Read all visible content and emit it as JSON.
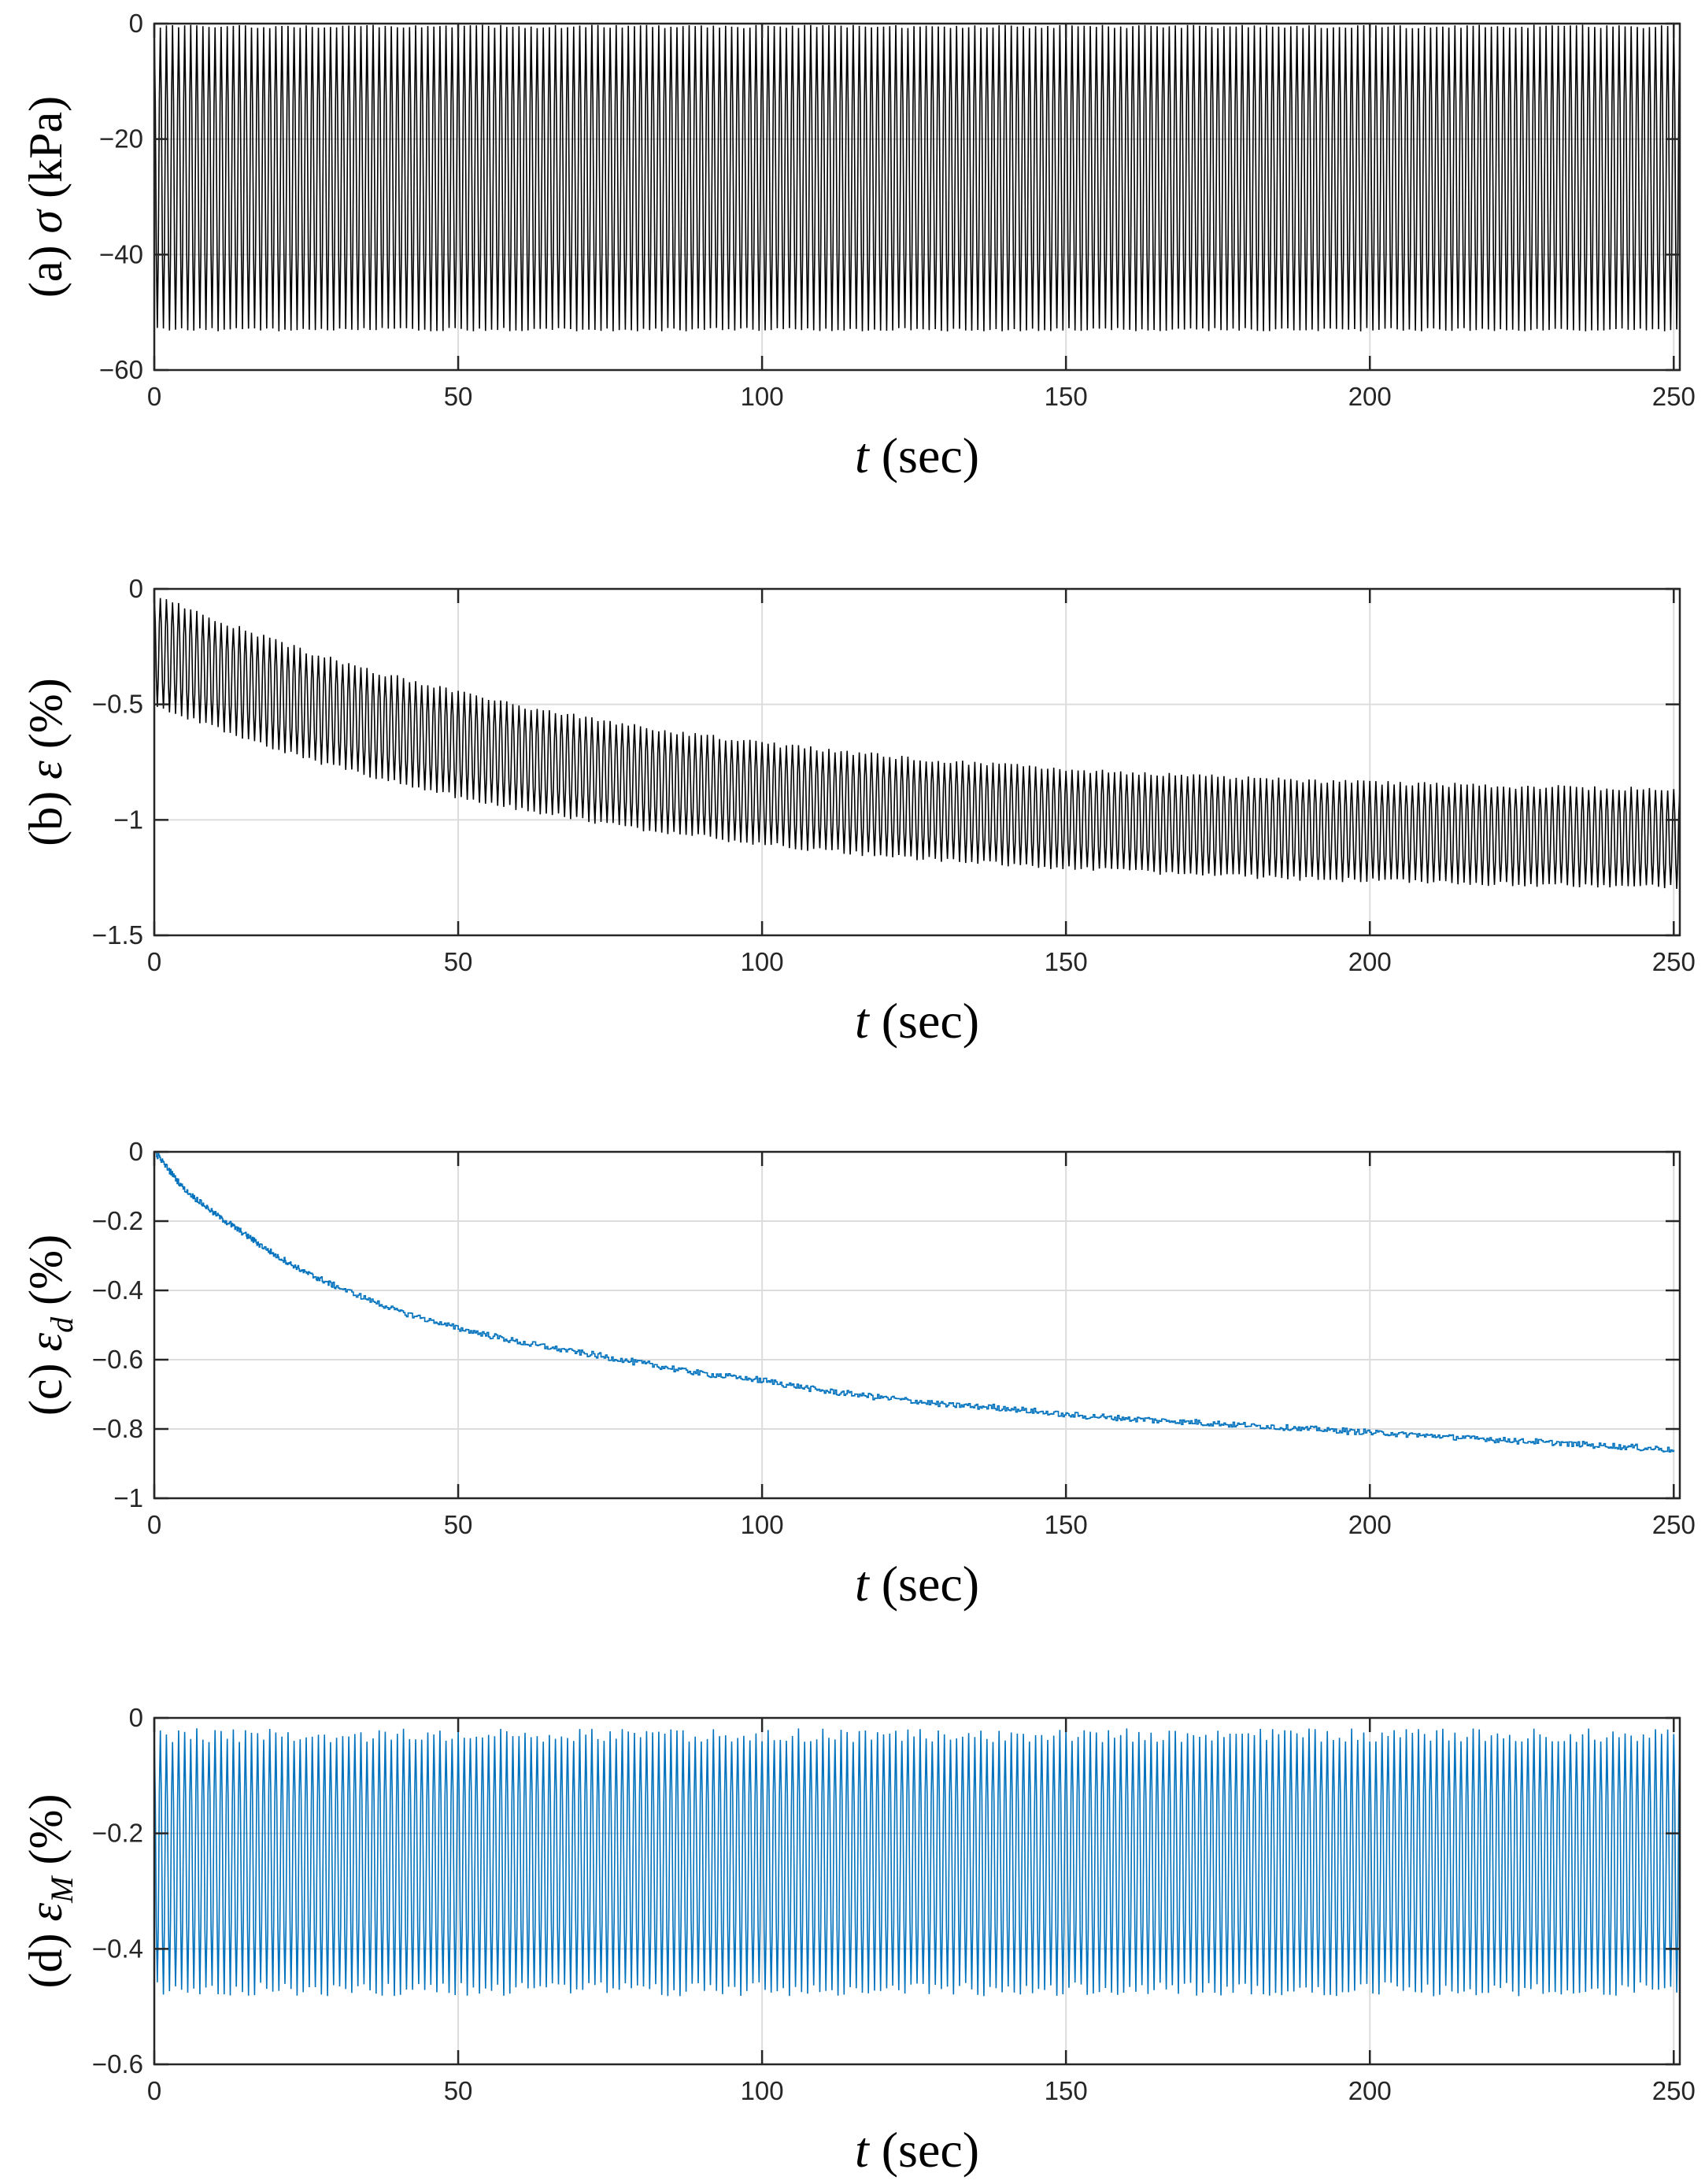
{
  "chart_data": [
    {
      "type": "line",
      "panel": "(a)",
      "ylabel_prefix": "(a) ",
      "ylabel_symbol": "σ",
      "ylabel_sub": "",
      "ylabel_suffix": " (kPa)",
      "xlabel_var": "t",
      "xlabel_unit": " (sec)",
      "xlim": [
        0,
        251
      ],
      "ylim": [
        -60,
        0
      ],
      "xticks": [
        0,
        50,
        100,
        150,
        200,
        250
      ],
      "yticks": [
        0,
        -20,
        -40,
        -60
      ],
      "xtick_labels": [
        "0",
        "50",
        "100",
        "150",
        "200",
        "250"
      ],
      "ytick_labels": [
        "0",
        "−20",
        "−40",
        "−60"
      ],
      "grid": true,
      "series": [
        {
          "name": "σ",
          "color": "#000000",
          "signal": {
            "kind": "oscillation",
            "period_sec": 1.0,
            "start_value": [
              0,
              0
            ],
            "trend": "flat",
            "upper": -0.5,
            "lower": -53,
            "noise": 0.3
          }
        }
      ]
    },
    {
      "type": "line",
      "panel": "(b)",
      "ylabel_prefix": "(b) ",
      "ylabel_symbol": "ε",
      "ylabel_sub": "",
      "ylabel_suffix": " (%)",
      "xlabel_var": "t",
      "xlabel_unit": " (sec)",
      "xlim": [
        0,
        251
      ],
      "ylim": [
        -1.5,
        0
      ],
      "xticks": [
        0,
        50,
        100,
        150,
        200,
        250
      ],
      "yticks": [
        0,
        -0.5,
        -1,
        -1.5
      ],
      "xtick_labels": [
        "0",
        "50",
        "100",
        "150",
        "200",
        "250"
      ],
      "ytick_labels": [
        "0",
        "−0.5",
        "−1",
        "−1.5"
      ],
      "grid": true,
      "series": [
        {
          "name": "ε",
          "color": "#000000",
          "signal": {
            "kind": "oscillation",
            "period_sec": 1.0,
            "trend": "decay",
            "upper_start": -0.02,
            "upper_end": -0.9,
            "lower_start": -0.5,
            "lower_end": -1.32,
            "tau_sec": 75,
            "noise": 0.01
          }
        }
      ]
    },
    {
      "type": "line",
      "panel": "(c)",
      "ylabel_prefix": "(c) ",
      "ylabel_symbol": "ε",
      "ylabel_sub": "d",
      "ylabel_suffix": " (%)",
      "xlabel_var": "t",
      "xlabel_unit": " (sec)",
      "xlim": [
        0,
        251
      ],
      "ylim": [
        -1,
        0
      ],
      "xticks": [
        0,
        50,
        100,
        150,
        200,
        250
      ],
      "yticks": [
        0,
        -0.2,
        -0.4,
        -0.6,
        -0.8,
        -1
      ],
      "xtick_labels": [
        "0",
        "50",
        "100",
        "150",
        "200",
        "250"
      ],
      "ytick_labels": [
        "0",
        "−0.2",
        "−0.4",
        "−0.6",
        "−0.8",
        "−1"
      ],
      "grid": true,
      "series": [
        {
          "name": "ε_d",
          "color": "#0072BD",
          "points": [
            [
              0,
              0
            ],
            [
              5,
              -0.11
            ],
            [
              10,
              -0.18
            ],
            [
              15,
              -0.24
            ],
            [
              20,
              -0.3
            ],
            [
              25,
              -0.35
            ],
            [
              30,
              -0.39
            ],
            [
              40,
              -0.46
            ],
            [
              50,
              -0.51
            ],
            [
              60,
              -0.55
            ],
            [
              70,
              -0.58
            ],
            [
              80,
              -0.61
            ],
            [
              90,
              -0.64
            ],
            [
              100,
              -0.66
            ],
            [
              110,
              -0.69
            ],
            [
              120,
              -0.71
            ],
            [
              130,
              -0.73
            ],
            [
              140,
              -0.74
            ],
            [
              150,
              -0.76
            ],
            [
              160,
              -0.77
            ],
            [
              170,
              -0.78
            ],
            [
              180,
              -0.79
            ],
            [
              190,
              -0.8
            ],
            [
              200,
              -0.81
            ],
            [
              210,
              -0.82
            ],
            [
              220,
              -0.83
            ],
            [
              230,
              -0.84
            ],
            [
              240,
              -0.85
            ],
            [
              250,
              -0.86
            ]
          ],
          "noise": 0.008
        }
      ]
    },
    {
      "type": "line",
      "panel": "(d)",
      "ylabel_prefix": "(d) ",
      "ylabel_symbol": "ε",
      "ylabel_sub": "M",
      "ylabel_suffix": " (%)",
      "xlabel_var": "t",
      "xlabel_unit": " (sec)",
      "xlim": [
        0,
        251
      ],
      "ylim": [
        -0.6,
        0
      ],
      "xticks": [
        0,
        50,
        100,
        150,
        200,
        250
      ],
      "yticks": [
        0,
        -0.2,
        -0.4,
        -0.6
      ],
      "xtick_labels": [
        "0",
        "50",
        "100",
        "150",
        "200",
        "250"
      ],
      "ytick_labels": [
        "0",
        "−0.2",
        "−0.4",
        "−0.6"
      ],
      "grid": true,
      "series": [
        {
          "name": "ε_M",
          "color": "#0072BD",
          "signal": {
            "kind": "oscillation",
            "period_sec": 1.0,
            "trend": "flat",
            "upper": -0.03,
            "lower": -0.47,
            "noise": 0.012
          }
        }
      ]
    }
  ]
}
